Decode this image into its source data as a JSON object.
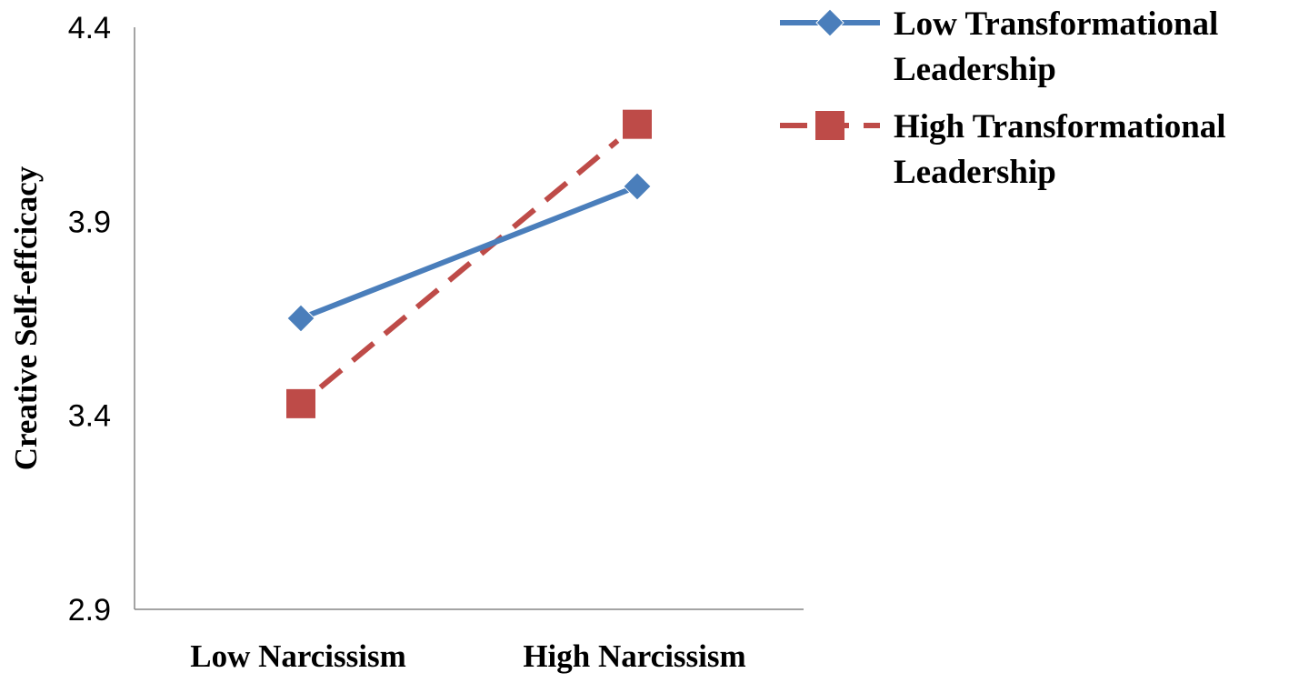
{
  "chart_data": {
    "type": "line",
    "categories": [
      "Low Narcissism",
      "High Narcissism"
    ],
    "ylabel": "Creative Self-effcicacy",
    "xlabel": "",
    "ylim": [
      2.9,
      4.4
    ],
    "yticks": [
      "2.9",
      "3.4",
      "3.9",
      "4.4"
    ],
    "grid": false,
    "legend_position": "top-right",
    "series": [
      {
        "name_lines": [
          "Low Transformational",
          "Leadership"
        ],
        "values": [
          3.65,
          3.99
        ],
        "color": "#4a7ebb",
        "marker": "diamond",
        "line_style": "solid"
      },
      {
        "name_lines": [
          "High Transformational",
          "Leadership"
        ],
        "values": [
          3.43,
          4.15
        ],
        "color": "#be4b48",
        "marker": "square",
        "line_style": "dashed"
      }
    ]
  }
}
